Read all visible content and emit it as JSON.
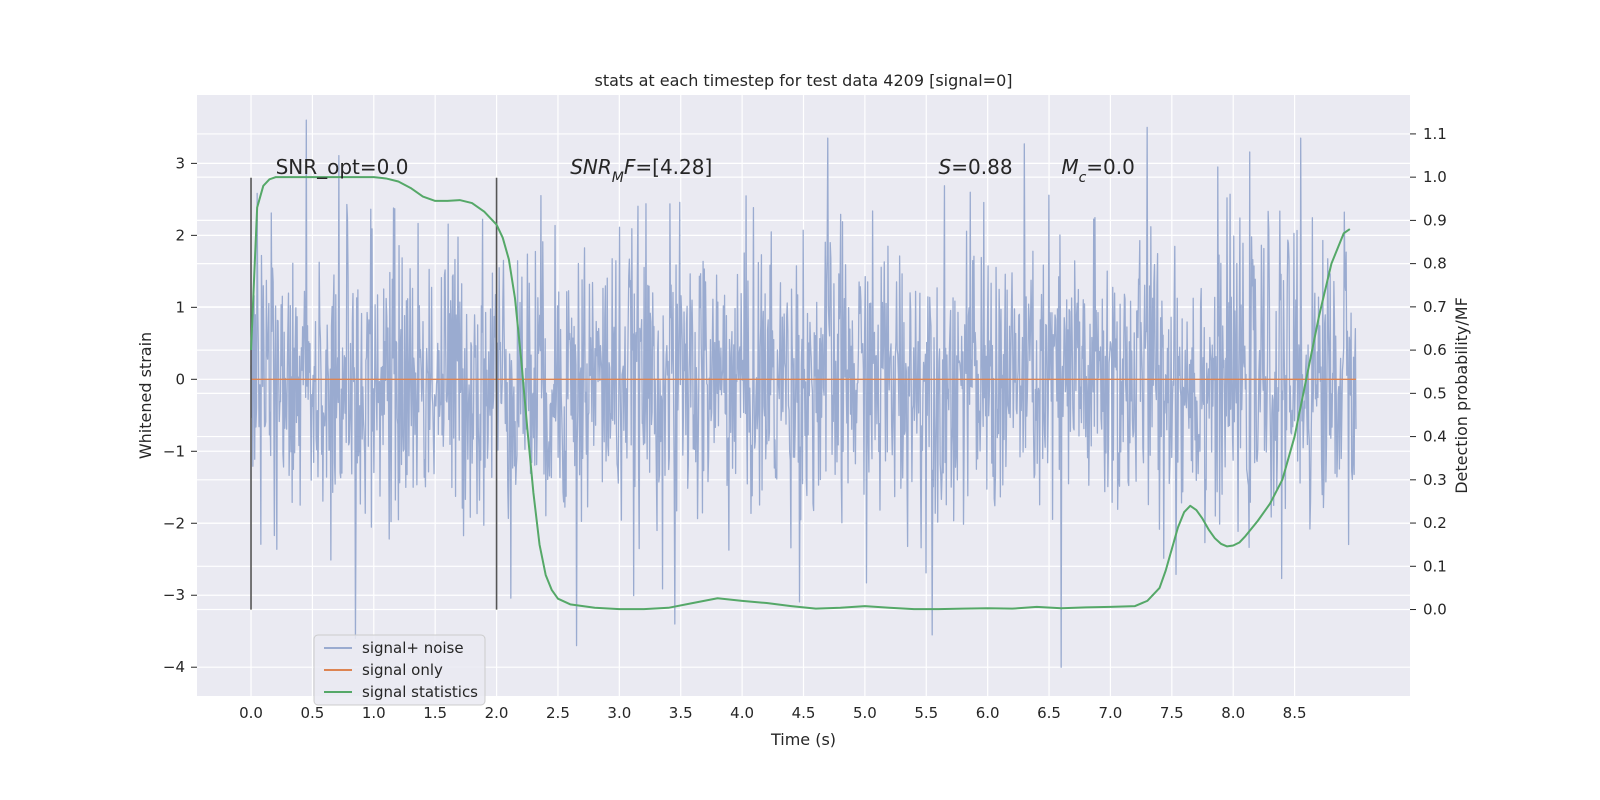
{
  "chart_data": {
    "type": "line",
    "title": "stats at each timestep for test data 4209 [signal=0]",
    "xlabel": "Time (s)",
    "ylabel_left": "Whitened strain",
    "ylabel_right": "Detection probability/MF",
    "xlim": [
      -0.44,
      9.44
    ],
    "ylim_left": [
      -4.4,
      3.95
    ],
    "ylim_right": [
      -0.2,
      1.19
    ],
    "x_ticks": [
      "0.0",
      "0.5",
      "1.0",
      "1.5",
      "2.0",
      "2.5",
      "3.0",
      "3.5",
      "4.0",
      "4.5",
      "5.0",
      "5.5",
      "6.0",
      "6.5",
      "7.0",
      "7.5",
      "8.0",
      "8.5"
    ],
    "y_ticks_left": [
      "−4",
      "−3",
      "−2",
      "−1",
      "0",
      "1",
      "2",
      "3"
    ],
    "y_ticks_right": [
      "0.0",
      "0.1",
      "0.2",
      "0.3",
      "0.4",
      "0.5",
      "0.6",
      "0.7",
      "0.8",
      "0.9",
      "1.0",
      "1.1"
    ],
    "grid": true,
    "legend_position": "lower-left",
    "colors": {
      "background": "#eaeaf2",
      "grid": "#ffffff",
      "signal_noise": "#9aabd0",
      "signal_only": "#dd8452",
      "statistics": "#55a868",
      "marker_lines": "#555555"
    },
    "series": [
      {
        "name": "signal+ noise",
        "color": "#9aabd0",
        "x_range": [
          0.0,
          9.0
        ],
        "typical_band": [
          -1.8,
          1.8
        ],
        "notable_spikes": [
          {
            "x": 0.45,
            "y": 3.6
          },
          {
            "x": 0.85,
            "y": -3.6
          },
          {
            "x": 2.65,
            "y": -3.7
          },
          {
            "x": 3.45,
            "y": -3.4
          },
          {
            "x": 4.7,
            "y": 3.35
          },
          {
            "x": 5.55,
            "y": -3.55
          },
          {
            "x": 6.6,
            "y": -4.0
          },
          {
            "x": 7.3,
            "y": 3.5
          },
          {
            "x": 8.55,
            "y": 3.35
          }
        ]
      },
      {
        "name": "signal only",
        "color": "#dd8452",
        "x": [
          0.0,
          9.0
        ],
        "y": [
          0.0,
          0.0
        ]
      },
      {
        "name": "signal statistics",
        "color": "#55a868",
        "axis": "right",
        "x": [
          0.0,
          0.05,
          0.1,
          0.15,
          0.2,
          0.3,
          0.5,
          0.8,
          1.0,
          1.1,
          1.2,
          1.3,
          1.4,
          1.5,
          1.6,
          1.7,
          1.8,
          1.9,
          2.0,
          2.05,
          2.1,
          2.15,
          2.2,
          2.25,
          2.3,
          2.35,
          2.4,
          2.45,
          2.5,
          2.6,
          2.8,
          3.0,
          3.2,
          3.4,
          3.6,
          3.8,
          4.0,
          4.2,
          4.4,
          4.6,
          4.8,
          5.0,
          5.2,
          5.4,
          5.6,
          5.8,
          6.0,
          6.2,
          6.4,
          6.6,
          6.8,
          7.0,
          7.2,
          7.3,
          7.4,
          7.45,
          7.5,
          7.55,
          7.6,
          7.65,
          7.7,
          7.75,
          7.8,
          7.85,
          7.9,
          7.95,
          8.0,
          8.05,
          8.1,
          8.2,
          8.3,
          8.4,
          8.5,
          8.6,
          8.7,
          8.8,
          8.9,
          8.95
        ],
        "y": [
          0.6,
          0.93,
          0.98,
          0.995,
          1.0,
          1.0,
          1.0,
          1.0,
          1.0,
          0.997,
          0.99,
          0.975,
          0.955,
          0.945,
          0.945,
          0.947,
          0.94,
          0.92,
          0.89,
          0.86,
          0.81,
          0.72,
          0.58,
          0.42,
          0.27,
          0.15,
          0.08,
          0.045,
          0.025,
          0.012,
          0.004,
          0.001,
          0.001,
          0.004,
          0.015,
          0.026,
          0.02,
          0.015,
          0.008,
          0.002,
          0.004,
          0.008,
          0.004,
          0.001,
          0.001,
          0.002,
          0.003,
          0.002,
          0.006,
          0.003,
          0.005,
          0.006,
          0.008,
          0.02,
          0.05,
          0.09,
          0.14,
          0.19,
          0.225,
          0.24,
          0.23,
          0.21,
          0.185,
          0.165,
          0.152,
          0.146,
          0.148,
          0.155,
          0.17,
          0.205,
          0.245,
          0.3,
          0.4,
          0.54,
          0.68,
          0.8,
          0.87,
          0.88
        ]
      }
    ],
    "vertical_lines": [
      {
        "x": 0.0,
        "y_range": [
          -3.2,
          2.8
        ],
        "color": "#555555"
      },
      {
        "x": 2.0,
        "y_range": [
          -3.2,
          2.8
        ],
        "color": "#555555"
      }
    ],
    "annotations": [
      {
        "id": "snr-opt",
        "x": 0.2,
        "y": 2.85,
        "parts": [
          {
            "t": "SNR_opt=0.0"
          }
        ]
      },
      {
        "id": "snr-mf",
        "x": 2.6,
        "y": 2.85,
        "parts": [
          {
            "t": "SNR",
            "i": true
          },
          {
            "t": "M",
            "i": true,
            "sub": true
          },
          {
            "t": "F",
            "i": true
          },
          {
            "t": "=[4.28]"
          }
        ]
      },
      {
        "id": "s-value",
        "x": 5.6,
        "y": 2.85,
        "parts": [
          {
            "t": "S",
            "i": true
          },
          {
            "t": "=0.88"
          }
        ]
      },
      {
        "id": "mc-value",
        "x": 6.6,
        "y": 2.85,
        "parts": [
          {
            "t": "M",
            "i": true
          },
          {
            "t": "c",
            "i": true,
            "sub": true
          },
          {
            "t": "=0.0"
          }
        ]
      }
    ]
  }
}
